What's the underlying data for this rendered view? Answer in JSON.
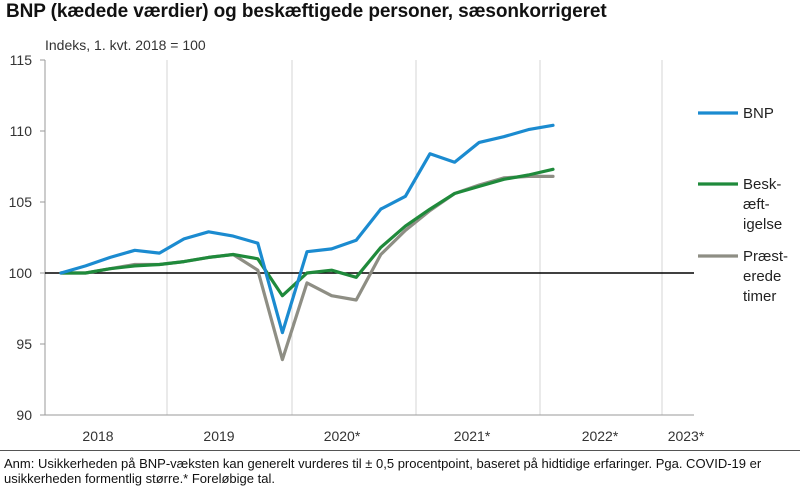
{
  "title": "BNP (kædede værdier) og beskæftigede personer, sæsonkorrigeret",
  "chart_data": {
    "type": "line",
    "title": "BNP (kædede værdier) og beskæftigede personer, sæsonkorrigeret",
    "ylabel": "Indeks, 1. kvt. 2018  = 100",
    "xlabel": "",
    "ylim": [
      90,
      115
    ],
    "y_ticks": [
      90,
      95,
      100,
      105,
      110,
      115
    ],
    "x_tick_labels": [
      "2018",
      "2019",
      "2020*",
      "2021*",
      "2022*",
      "2023*"
    ],
    "reference_line": 100,
    "grid": "vertical",
    "legend_placement": "right",
    "series": [
      {
        "name": "BNP",
        "legend_lines": [
          "BNP"
        ],
        "color": "#1b8bd0",
        "values": [
          100.0,
          100.5,
          101.1,
          101.6,
          101.4,
          102.4,
          102.9,
          102.6,
          102.1,
          95.8,
          101.5,
          101.7,
          102.3,
          104.5,
          105.4,
          108.4,
          107.8,
          109.2,
          109.6,
          110.1,
          110.4
        ]
      },
      {
        "name": "Beskæftigelse",
        "legend_lines": [
          "Besk-",
          "æft-",
          "igelse"
        ],
        "color": "#1f8a3b",
        "values": [
          100.0,
          100.0,
          100.3,
          100.5,
          100.6,
          100.8,
          101.1,
          101.3,
          101.0,
          98.4,
          100.0,
          100.2,
          99.7,
          101.8,
          103.3,
          104.5,
          105.6,
          106.1,
          106.6,
          106.9,
          107.3
        ]
      },
      {
        "name": "Præsterede timer",
        "legend_lines": [
          "Præst-",
          "erede",
          "timer"
        ],
        "color": "#8e8e84",
        "values": [
          100.0,
          100.0,
          100.3,
          100.6,
          100.6,
          100.8,
          101.1,
          101.3,
          100.2,
          93.9,
          99.3,
          98.4,
          98.1,
          101.3,
          103.0,
          104.4,
          105.6,
          106.2,
          106.7,
          106.8,
          106.8
        ]
      }
    ]
  },
  "footnote": {
    "line1": "Anm: Usikkerheden på BNP-væksten kan generelt vurderes til ± 0,5 procentpoint, baseret på hidtidige erfaringer. Pga. COVID-19 er",
    "line2": "usikkerheden formentlig større.* Foreløbige tal."
  }
}
